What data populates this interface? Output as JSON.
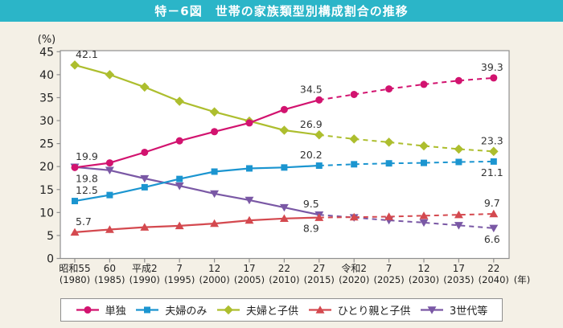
{
  "header": {
    "title": "特－6図　世帯の家族類型別構成割合の推移"
  },
  "colors": {
    "header_bg": "#2bb5c8",
    "page_bg": "#f4f0e6",
    "plot_bg": "#ffffff",
    "axis": "#8f8f8f",
    "tick_text": "#222222",
    "annotation_text": "#333333"
  },
  "chart_data": {
    "type": "line",
    "title": "特－6図　世帯の家族類型別構成割合の推移",
    "unit_label": "(%)",
    "x_axis_suffix": "(年)",
    "ylim": [
      0,
      45
    ],
    "y_ticks": [
      0,
      5,
      10,
      15,
      20,
      25,
      30,
      35,
      40,
      45
    ],
    "grid": "off",
    "legend_position": "bottom",
    "solid_until_index": 7,
    "x_labels_era": [
      "昭和55",
      "60",
      "平成2",
      "7",
      "12",
      "17",
      "22",
      "27",
      "令和2",
      "7",
      "12",
      "17",
      "22"
    ],
    "x_labels_year": [
      "(1980)",
      "(1985)",
      "(1990)",
      "(1995)",
      "(2000)",
      "(2005)",
      "(2010)",
      "(2015)",
      "(2020)",
      "(2025)",
      "(2030)",
      "(2035)",
      "(2040)"
    ],
    "series": [
      {
        "name": "単独",
        "color": "#d2136f",
        "marker": "circle",
        "values": [
          19.8,
          20.8,
          23.1,
          25.6,
          27.6,
          29.5,
          32.4,
          34.5,
          35.7,
          36.9,
          37.9,
          38.7,
          39.3
        ]
      },
      {
        "name": "夫婦のみ",
        "color": "#1b95d0",
        "marker": "square",
        "values": [
          12.5,
          13.8,
          15.5,
          17.3,
          18.9,
          19.6,
          19.8,
          20.2,
          20.5,
          20.7,
          20.8,
          21.0,
          21.1
        ]
      },
      {
        "name": "夫婦と子供",
        "color": "#adbe2e",
        "marker": "diamond",
        "values": [
          42.1,
          40.0,
          37.3,
          34.2,
          31.9,
          29.9,
          27.9,
          26.9,
          26.0,
          25.3,
          24.5,
          23.8,
          23.3
        ]
      },
      {
        "name": "ひとり親と子供",
        "color": "#d4494f",
        "marker": "triangle-up",
        "values": [
          5.7,
          6.3,
          6.8,
          7.1,
          7.6,
          8.3,
          8.7,
          8.9,
          9.0,
          9.1,
          9.3,
          9.5,
          9.7
        ]
      },
      {
        "name": "3世代等",
        "color": "#7a58a5",
        "marker": "triangle-down",
        "values": [
          19.9,
          19.2,
          17.4,
          15.8,
          14.1,
          12.7,
          11.1,
          9.5,
          8.9,
          8.3,
          7.8,
          7.2,
          6.6
        ]
      }
    ],
    "annotations": [
      {
        "text": "42.1",
        "series": "夫婦と子供",
        "i": 0,
        "pos": "above"
      },
      {
        "text": "19.9",
        "series": "3世代等",
        "i": 0,
        "pos": "above"
      },
      {
        "text": "19.8",
        "series": "単独",
        "i": 0,
        "pos": "below"
      },
      {
        "text": "12.5",
        "series": "夫婦のみ",
        "i": 0,
        "pos": "above"
      },
      {
        "text": "5.7",
        "series": "ひとり親と子供",
        "i": 0,
        "pos": "above"
      },
      {
        "text": "34.5",
        "series": "単独",
        "i": 7,
        "pos": "above"
      },
      {
        "text": "26.9",
        "series": "夫婦と子供",
        "i": 7,
        "pos": "above"
      },
      {
        "text": "20.2",
        "series": "夫婦のみ",
        "i": 7,
        "pos": "above"
      },
      {
        "text": "9.5",
        "series": "3世代等",
        "i": 7,
        "pos": "above"
      },
      {
        "text": "8.9",
        "series": "ひとり親と子供",
        "i": 7,
        "pos": "below"
      },
      {
        "text": "39.3",
        "series": "単独",
        "i": 12,
        "pos": "above"
      },
      {
        "text": "23.3",
        "series": "夫婦と子供",
        "i": 12,
        "pos": "above"
      },
      {
        "text": "21.1",
        "series": "夫婦のみ",
        "i": 12,
        "pos": "below"
      },
      {
        "text": "9.7",
        "series": "ひとり親と子供",
        "i": 12,
        "pos": "above"
      },
      {
        "text": "6.6",
        "series": "3世代等",
        "i": 12,
        "pos": "below"
      }
    ]
  }
}
